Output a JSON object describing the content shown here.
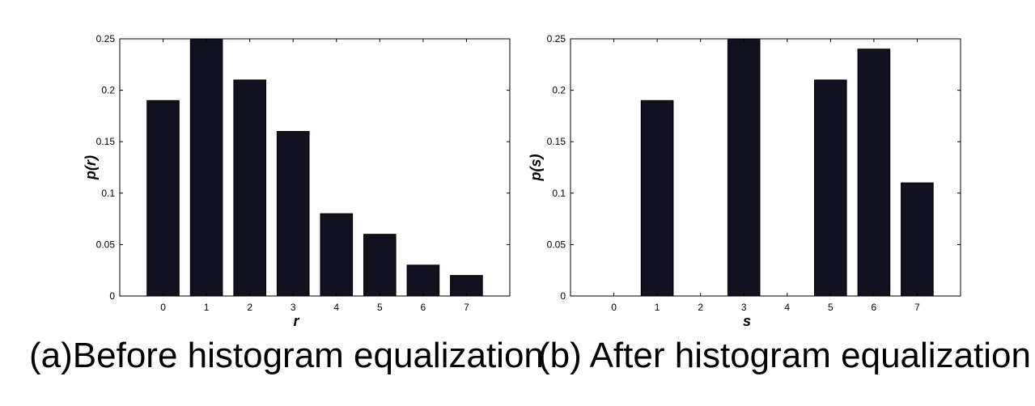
{
  "chart_data": [
    {
      "type": "bar",
      "categories": [
        "0",
        "1",
        "2",
        "3",
        "4",
        "5",
        "6",
        "7"
      ],
      "values": [
        0.19,
        0.25,
        0.21,
        0.16,
        0.08,
        0.06,
        0.03,
        0.02
      ],
      "xlabel": "r",
      "ylabel": "p(r)",
      "ylim": [
        0,
        0.25
      ],
      "yticks": [
        "0",
        "0.05",
        "0.1",
        "0.15",
        "0.2",
        "0.25"
      ],
      "bar_color": "#11111f",
      "grid": false,
      "caption": "(a)Before histogram equalization"
    },
    {
      "type": "bar",
      "categories": [
        "0",
        "1",
        "2",
        "3",
        "4",
        "5",
        "6",
        "7"
      ],
      "values": [
        0,
        0.19,
        0,
        0.25,
        0,
        0.21,
        0.24,
        0.11
      ],
      "xlabel": "s",
      "ylabel": "p(s)",
      "ylim": [
        0,
        0.25
      ],
      "yticks": [
        "0",
        "0.05",
        "0.1",
        "0.15",
        "0.2",
        "0.25"
      ],
      "bar_color": "#11111f",
      "grid": false,
      "caption": "(b) After histogram equalization"
    }
  ]
}
